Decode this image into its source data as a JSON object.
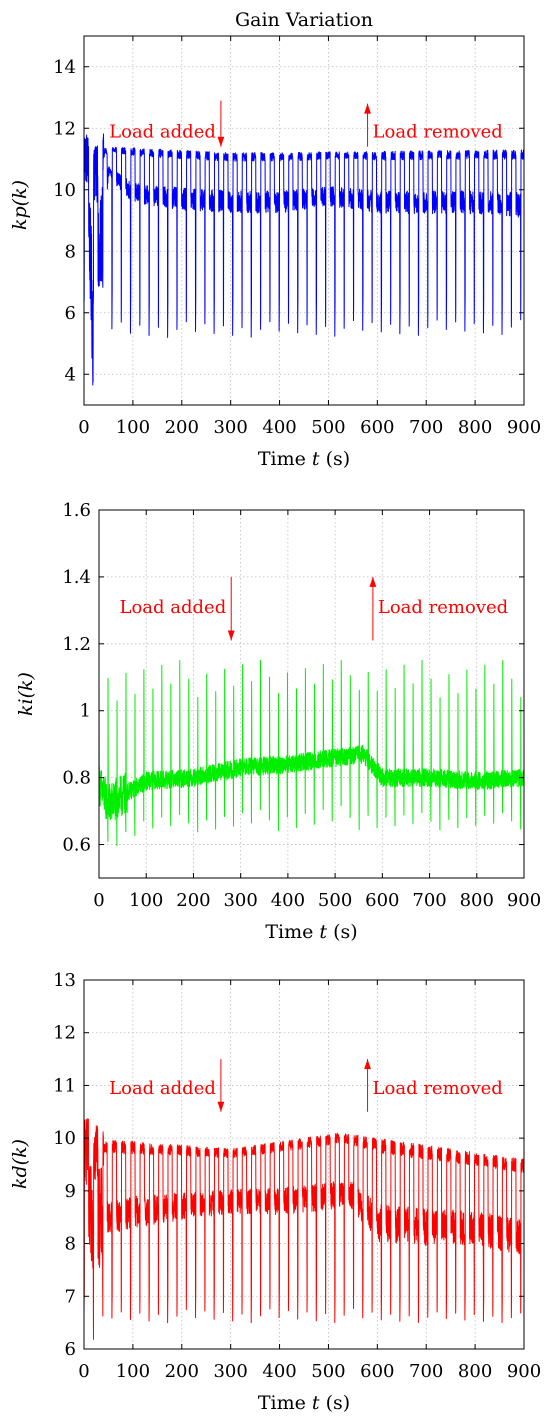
{
  "figure_title": "Gain Variation",
  "chart_data": [
    {
      "type": "line",
      "title": "Gain Variation",
      "xlabel": "Time t (s)",
      "xlabel_parts": {
        "before": "Time ",
        "var": "t",
        "after": " (s)"
      },
      "ylabel": "kp(k)",
      "xlim": [
        0,
        900
      ],
      "ylim": [
        3,
        15
      ],
      "xticks": [
        0,
        100,
        200,
        300,
        400,
        500,
        600,
        700,
        800,
        900
      ],
      "yticks": [
        4,
        6,
        8,
        10,
        12,
        14
      ],
      "grid": true,
      "series": [
        {
          "color": "#0000ff",
          "period_s": 19,
          "points": [
            {
              "x": 0,
              "y": 11.0
            },
            {
              "x": 10,
              "y": 9.0
            },
            {
              "x": 18,
              "y": 5.7
            },
            {
              "x": 50,
              "y": 10.6
            },
            {
              "x": 100,
              "y": 9.9
            },
            {
              "x": 200,
              "y": 9.7
            },
            {
              "x": 300,
              "y": 9.6
            },
            {
              "x": 400,
              "y": 9.6
            },
            {
              "x": 500,
              "y": 9.8
            },
            {
              "x": 600,
              "y": 9.6
            },
            {
              "x": 700,
              "y": 9.6
            },
            {
              "x": 800,
              "y": 9.6
            },
            {
              "x": 900,
              "y": 9.5
            }
          ],
          "upper_envelope": [
            {
              "x": 0,
              "y": 11.2
            },
            {
              "x": 60,
              "y": 11.4
            },
            {
              "x": 300,
              "y": 11.2
            },
            {
              "x": 900,
              "y": 11.3
            }
          ],
          "dip_minimum": [
            {
              "x": 0,
              "y": 6.3
            },
            {
              "x": 60,
              "y": 5.2
            },
            {
              "x": 300,
              "y": 5.2
            },
            {
              "x": 900,
              "y": 5.3
            }
          ]
        }
      ],
      "annotations": [
        {
          "text": "Load added",
          "x": 280,
          "y": 11.9,
          "arrow": "down",
          "arrow_from": 12.9,
          "arrow_to": 11.4,
          "color": "#ff0000"
        },
        {
          "text": "Load removed",
          "x": 580,
          "y": 11.9,
          "arrow": "up",
          "arrow_from": 11.4,
          "arrow_to": 12.8,
          "color": "#ff0000"
        }
      ]
    },
    {
      "type": "line",
      "title": "",
      "xlabel": "Time t (s)",
      "xlabel_parts": {
        "before": "Time ",
        "var": "t",
        "after": " (s)"
      },
      "ylabel": "ki(k)",
      "xlim": [
        0,
        900
      ],
      "ylim": [
        0.5,
        1.6
      ],
      "xticks": [
        0,
        100,
        200,
        300,
        400,
        500,
        600,
        700,
        800,
        900
      ],
      "yticks": [
        0.6,
        0.8,
        1,
        1.2,
        1.4,
        1.6
      ],
      "grid": true,
      "series": [
        {
          "color": "#00ee00",
          "period_s": 19,
          "points": [
            {
              "x": 0,
              "y": 0.78
            },
            {
              "x": 20,
              "y": 0.72
            },
            {
              "x": 100,
              "y": 0.79
            },
            {
              "x": 200,
              "y": 0.8
            },
            {
              "x": 300,
              "y": 0.83
            },
            {
              "x": 400,
              "y": 0.84
            },
            {
              "x": 500,
              "y": 0.86
            },
            {
              "x": 560,
              "y": 0.87
            },
            {
              "x": 600,
              "y": 0.8
            },
            {
              "x": 700,
              "y": 0.8
            },
            {
              "x": 800,
              "y": 0.79
            },
            {
              "x": 900,
              "y": 0.8
            }
          ],
          "spike_peak": [
            {
              "x": 0,
              "y": 1.1
            },
            {
              "x": 20,
              "y": 1.17
            },
            {
              "x": 100,
              "y": 1.15
            },
            {
              "x": 900,
              "y": 1.15
            }
          ],
          "dip_minimum": [
            {
              "x": 0,
              "y": 0.6
            },
            {
              "x": 20,
              "y": 0.58
            },
            {
              "x": 100,
              "y": 0.63
            },
            {
              "x": 900,
              "y": 0.64
            }
          ]
        }
      ],
      "annotations": [
        {
          "text": "Load added",
          "x": 280,
          "y": 1.31,
          "arrow": "down",
          "arrow_from": 1.4,
          "arrow_to": 1.21,
          "color": "#ff0000"
        },
        {
          "text": "Load removed",
          "x": 580,
          "y": 1.31,
          "arrow": "up",
          "arrow_from": 1.21,
          "arrow_to": 1.4,
          "color": "#ff0000"
        }
      ]
    },
    {
      "type": "line",
      "title": "",
      "xlabel": "Time t (s)",
      "xlabel_parts": {
        "before": "Time ",
        "var": "t",
        "after": " (s)"
      },
      "ylabel": "kd(k)",
      "xlim": [
        0,
        900
      ],
      "ylim": [
        6,
        13
      ],
      "xticks": [
        0,
        100,
        200,
        300,
        400,
        500,
        600,
        700,
        800,
        900
      ],
      "yticks": [
        6,
        7,
        8,
        9,
        10,
        11,
        12,
        13
      ],
      "grid": true,
      "series": [
        {
          "color": "#ff0000",
          "period_s": 19,
          "points": [
            {
              "x": 0,
              "y": 8.5
            },
            {
              "x": 50,
              "y": 8.5
            },
            {
              "x": 100,
              "y": 8.6
            },
            {
              "x": 200,
              "y": 8.7
            },
            {
              "x": 300,
              "y": 8.8
            },
            {
              "x": 400,
              "y": 8.8
            },
            {
              "x": 500,
              "y": 8.9
            },
            {
              "x": 540,
              "y": 9.0
            },
            {
              "x": 600,
              "y": 8.4
            },
            {
              "x": 700,
              "y": 8.3
            },
            {
              "x": 800,
              "y": 8.3
            },
            {
              "x": 900,
              "y": 8.1
            }
          ],
          "upper_envelope": [
            {
              "x": 0,
              "y": 10.0
            },
            {
              "x": 300,
              "y": 9.8
            },
            {
              "x": 520,
              "y": 10.1
            },
            {
              "x": 600,
              "y": 10.0
            },
            {
              "x": 900,
              "y": 9.6
            }
          ],
          "dip_minimum": [
            {
              "x": 0,
              "y": 6.3
            },
            {
              "x": 50,
              "y": 6.5
            },
            {
              "x": 300,
              "y": 6.5
            },
            {
              "x": 900,
              "y": 6.5
            }
          ]
        }
      ],
      "annotations": [
        {
          "text": "Load added",
          "x": 280,
          "y": 10.95,
          "arrow": "down",
          "arrow_from": 11.5,
          "arrow_to": 10.5,
          "color": "#ff0000"
        },
        {
          "text": "Load removed",
          "x": 580,
          "y": 10.95,
          "arrow": "up",
          "arrow_from": 10.5,
          "arrow_to": 11.5,
          "color": "#ff0000"
        }
      ]
    }
  ]
}
